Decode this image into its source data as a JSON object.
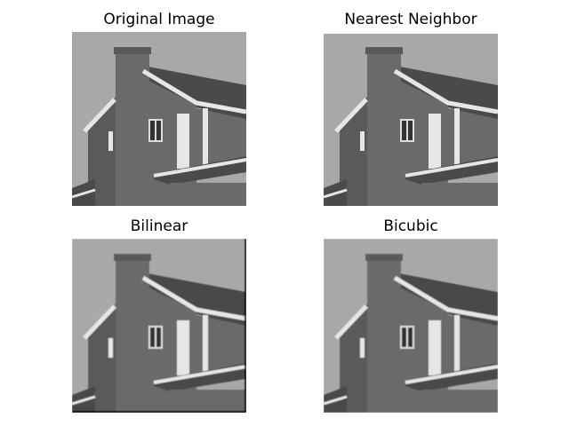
{
  "figure": {
    "panels": [
      {
        "title": "Original Image",
        "variant": "original"
      },
      {
        "title": "Nearest Neighbor",
        "variant": "nearest"
      },
      {
        "title": "Bilinear",
        "variant": "bilinear"
      },
      {
        "title": "Bicubic",
        "variant": "bicubic"
      }
    ]
  },
  "colors": {
    "sky": "#a8a8a8",
    "wall": "#6a6a6a",
    "wall_dark": "#5a5a5a",
    "roof": "#4a4a4a",
    "trim": "#e6e6e6",
    "window_dark": "#333333",
    "window_light": "#dcdcdc"
  }
}
